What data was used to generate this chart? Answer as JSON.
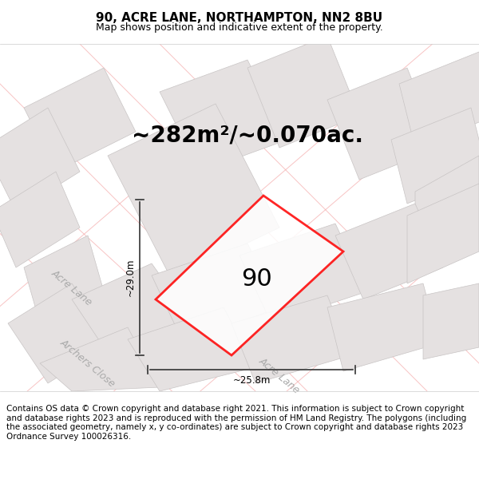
{
  "title": "90, ACRE LANE, NORTHAMPTON, NN2 8BU",
  "subtitle": "Map shows position and indicative extent of the property.",
  "area_text": "~282m²/~0.070ac.",
  "property_number": "90",
  "dim_width": "~25.8m",
  "dim_height": "~29.0m",
  "footer": "Contains OS data © Crown copyright and database right 2021. This information is subject to Crown copyright and database rights 2023 and is reproduced with the permission of HM Land Registry. The polygons (including the associated geometry, namely x, y co-ordinates) are subject to Crown copyright and database rights 2023 Ordnance Survey 100026316.",
  "bg_color": "#f0eeee",
  "map_bg": "#f5f3f3",
  "footer_bg": "#ffffff",
  "property_poly_color": "#ff0000",
  "street_label_color": "#aaaaaa",
  "title_fontsize": 11,
  "subtitle_fontsize": 9,
  "area_fontsize": 20,
  "number_fontsize": 22,
  "footer_fontsize": 7.5
}
